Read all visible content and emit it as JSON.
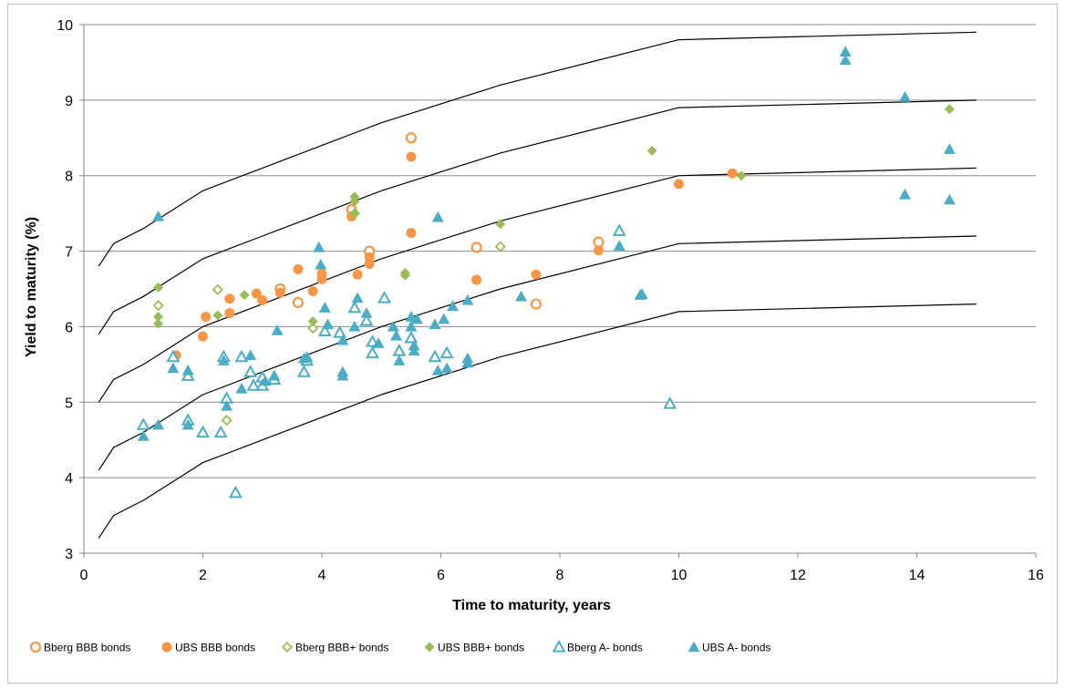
{
  "chart_data": {
    "type": "scatter",
    "title": "",
    "xlabel": "Time to maturity, years",
    "ylabel": "Yield to maturity (%)",
    "xlim": [
      0,
      16
    ],
    "ylim": [
      3,
      10
    ],
    "xticks": [
      0,
      2,
      4,
      6,
      8,
      10,
      12,
      14,
      16
    ],
    "yticks": [
      3,
      4,
      5,
      6,
      7,
      8,
      9,
      10
    ],
    "grid": "horizontal",
    "legend_position": "bottom",
    "colors": {
      "orange": "#f79646",
      "green": "#9bbb59",
      "blue": "#4bacc6"
    },
    "curves": [
      {
        "x": [
          0.25,
          0.5,
          1,
          2,
          3,
          5,
          7,
          10,
          15
        ],
        "y": [
          6.8,
          7.1,
          7.3,
          7.8,
          8.1,
          8.7,
          9.2,
          9.8,
          9.9
        ]
      },
      {
        "x": [
          0.25,
          0.5,
          1,
          2,
          3,
          5,
          7,
          10,
          15
        ],
        "y": [
          5.9,
          6.2,
          6.4,
          6.9,
          7.2,
          7.8,
          8.3,
          8.9,
          9.0
        ]
      },
      {
        "x": [
          0.25,
          0.5,
          1,
          2,
          3,
          5,
          7,
          10,
          15
        ],
        "y": [
          5.0,
          5.3,
          5.5,
          6.0,
          6.3,
          6.9,
          7.4,
          8.0,
          8.1
        ]
      },
      {
        "x": [
          0.25,
          0.5,
          1,
          2,
          3,
          5,
          7,
          10,
          15
        ],
        "y": [
          4.1,
          4.4,
          4.6,
          5.1,
          5.4,
          6.0,
          6.5,
          7.1,
          7.2
        ]
      },
      {
        "x": [
          0.25,
          0.5,
          1,
          2,
          3,
          5,
          7,
          10,
          15
        ],
        "y": [
          3.2,
          3.5,
          3.7,
          4.2,
          4.5,
          5.1,
          5.6,
          6.2,
          6.3
        ]
      }
    ],
    "series": [
      {
        "name": "Bberg BBB bonds",
        "marker": "circle",
        "filled": false,
        "color": "#f79646",
        "points": [
          [
            3.3,
            6.5
          ],
          [
            3.6,
            6.32
          ],
          [
            4.5,
            7.55
          ],
          [
            4.8,
            7.0
          ],
          [
            5.5,
            8.5
          ],
          [
            6.6,
            7.05
          ],
          [
            7.6,
            6.3
          ],
          [
            8.65,
            7.12
          ]
        ]
      },
      {
        "name": "UBS BBB bonds",
        "marker": "circle",
        "filled": true,
        "color": "#f79646",
        "points": [
          [
            1.55,
            5.62
          ],
          [
            2.0,
            5.87
          ],
          [
            2.05,
            6.13
          ],
          [
            2.45,
            6.37
          ],
          [
            2.45,
            6.18
          ],
          [
            2.9,
            6.44
          ],
          [
            3.0,
            6.35
          ],
          [
            3.3,
            6.45
          ],
          [
            3.6,
            6.76
          ],
          [
            3.85,
            6.47
          ],
          [
            4.0,
            6.63
          ],
          [
            4.0,
            6.7
          ],
          [
            4.5,
            7.46
          ],
          [
            4.6,
            6.69
          ],
          [
            4.8,
            6.83
          ],
          [
            4.8,
            6.92
          ],
          [
            5.5,
            8.25
          ],
          [
            5.5,
            7.24
          ],
          [
            6.6,
            6.62
          ],
          [
            7.6,
            6.69
          ],
          [
            8.65,
            7.01
          ],
          [
            10.0,
            7.89
          ],
          [
            10.9,
            8.03
          ]
        ]
      },
      {
        "name": "Bberg BBB+ bonds",
        "marker": "diamond",
        "filled": false,
        "color": "#9bbb59",
        "points": [
          [
            1.25,
            6.28
          ],
          [
            2.25,
            6.49
          ],
          [
            2.4,
            4.76
          ],
          [
            3.85,
            5.98
          ],
          [
            4.55,
            7.5
          ],
          [
            7.0,
            7.06
          ]
        ]
      },
      {
        "name": "UBS BBB+ bonds",
        "marker": "diamond",
        "filled": true,
        "color": "#9bbb59",
        "points": [
          [
            1.25,
            6.52
          ],
          [
            1.25,
            6.13
          ],
          [
            1.25,
            6.04
          ],
          [
            2.25,
            6.15
          ],
          [
            2.7,
            6.42
          ],
          [
            3.85,
            6.07
          ],
          [
            4.55,
            7.72
          ],
          [
            4.55,
            7.66
          ],
          [
            4.55,
            7.5
          ],
          [
            5.4,
            6.71
          ],
          [
            5.4,
            6.68
          ],
          [
            7.0,
            7.36
          ],
          [
            9.55,
            8.33
          ],
          [
            11.05,
            8.0
          ],
          [
            14.55,
            8.88
          ]
        ]
      },
      {
        "name": "Bberg A- bonds",
        "marker": "triangle",
        "filled": false,
        "color": "#4bacc6",
        "points": [
          [
            1.0,
            4.7
          ],
          [
            1.5,
            5.6
          ],
          [
            1.75,
            5.35
          ],
          [
            1.75,
            4.76
          ],
          [
            2.0,
            4.6
          ],
          [
            2.3,
            4.6
          ],
          [
            2.35,
            5.6
          ],
          [
            2.4,
            5.05
          ],
          [
            2.55,
            3.8
          ],
          [
            2.65,
            5.6
          ],
          [
            2.8,
            5.4
          ],
          [
            2.85,
            5.22
          ],
          [
            3.0,
            5.33
          ],
          [
            3.0,
            5.22
          ],
          [
            3.2,
            5.3
          ],
          [
            3.7,
            5.4
          ],
          [
            3.75,
            5.55
          ],
          [
            4.05,
            5.94
          ],
          [
            4.3,
            5.92
          ],
          [
            4.55,
            6.25
          ],
          [
            4.75,
            6.08
          ],
          [
            4.85,
            5.8
          ],
          [
            4.85,
            5.65
          ],
          [
            5.05,
            6.38
          ],
          [
            5.3,
            5.68
          ],
          [
            5.5,
            5.85
          ],
          [
            5.9,
            5.6
          ],
          [
            6.1,
            5.65
          ],
          [
            9.0,
            7.27
          ],
          [
            9.85,
            4.98
          ]
        ]
      },
      {
        "name": "UBS A- bonds",
        "marker": "triangle",
        "filled": true,
        "color": "#4bacc6",
        "points": [
          [
            1.0,
            4.55
          ],
          [
            1.25,
            7.46
          ],
          [
            1.25,
            4.7
          ],
          [
            1.5,
            5.45
          ],
          [
            1.75,
            5.42
          ],
          [
            1.75,
            4.7
          ],
          [
            2.35,
            5.55
          ],
          [
            2.4,
            4.95
          ],
          [
            2.65,
            5.18
          ],
          [
            2.8,
            5.62
          ],
          [
            3.05,
            5.28
          ],
          [
            3.2,
            5.35
          ],
          [
            3.25,
            5.95
          ],
          [
            3.7,
            5.58
          ],
          [
            3.75,
            5.6
          ],
          [
            3.95,
            7.05
          ],
          [
            3.98,
            6.82
          ],
          [
            4.05,
            6.25
          ],
          [
            4.1,
            6.03
          ],
          [
            4.35,
            5.4
          ],
          [
            4.35,
            5.35
          ],
          [
            4.35,
            5.82
          ],
          [
            4.55,
            6.0
          ],
          [
            4.6,
            6.38
          ],
          [
            4.75,
            6.18
          ],
          [
            4.95,
            5.78
          ],
          [
            5.2,
            6.0
          ],
          [
            5.25,
            5.88
          ],
          [
            5.3,
            5.55
          ],
          [
            5.5,
            6.13
          ],
          [
            5.5,
            6.0
          ],
          [
            5.55,
            5.68
          ],
          [
            5.55,
            5.75
          ],
          [
            5.6,
            6.1
          ],
          [
            5.9,
            6.03
          ],
          [
            5.95,
            5.42
          ],
          [
            5.95,
            7.45
          ],
          [
            6.05,
            6.1
          ],
          [
            6.1,
            5.45
          ],
          [
            6.2,
            6.27
          ],
          [
            6.45,
            6.35
          ],
          [
            6.45,
            5.58
          ],
          [
            6.45,
            5.52
          ],
          [
            7.35,
            6.4
          ],
          [
            9.0,
            7.07
          ],
          [
            9.35,
            6.42
          ],
          [
            9.38,
            6.43
          ],
          [
            12.8,
            9.64
          ],
          [
            12.8,
            9.53
          ],
          [
            13.8,
            9.04
          ],
          [
            13.8,
            7.75
          ],
          [
            14.55,
            8.35
          ],
          [
            14.55,
            7.68
          ]
        ]
      }
    ]
  }
}
